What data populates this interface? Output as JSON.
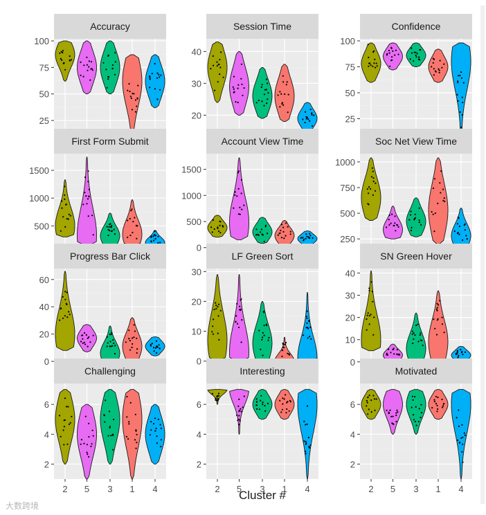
{
  "chart_data": {
    "type": "violin",
    "xlabel": "Cluster #",
    "categories": [
      "2",
      "5",
      "3",
      "1",
      "4"
    ],
    "colors": [
      "#a3a500",
      "#e76bf3",
      "#00bf7d",
      "#f8766d",
      "#00b0f6"
    ],
    "panels": [
      {
        "title": "Accuracy",
        "ylim": [
          12,
          102
        ],
        "ticks": [
          25,
          50,
          75,
          100
        ],
        "ranges": [
          [
            62,
            100
          ],
          [
            50,
            100
          ],
          [
            50,
            100
          ],
          [
            12,
            87
          ],
          [
            37,
            87
          ]
        ],
        "medians": [
          87,
          75,
          75,
          62,
          62
        ]
      },
      {
        "title": "Session Time",
        "ylim": [
          14,
          44
        ],
        "ticks": [
          20,
          30,
          40
        ],
        "ranges": [
          [
            24,
            43
          ],
          [
            20,
            40
          ],
          [
            19,
            35
          ],
          [
            18,
            36
          ],
          [
            15,
            24
          ]
        ],
        "medians": [
          35,
          29,
          26,
          26,
          19
        ]
      },
      {
        "title": "Confidence",
        "ylim": [
          10,
          102
        ],
        "ticks": [
          25,
          50,
          75,
          100
        ],
        "ranges": [
          [
            60,
            98
          ],
          [
            72,
            98
          ],
          [
            75,
            98
          ],
          [
            60,
            92
          ],
          [
            12,
            98
          ]
        ],
        "medians": [
          78,
          85,
          86,
          75,
          80
        ]
      },
      {
        "title": "First Form Submit",
        "ylim": [
          80,
          1800
        ],
        "ticks": [
          500,
          1000,
          1500
        ],
        "ranges": [
          [
            300,
            1330
          ],
          [
            150,
            1740
          ],
          [
            150,
            730
          ],
          [
            150,
            970
          ],
          [
            120,
            420
          ]
        ],
        "medians": [
          500,
          330,
          320,
          350,
          200
        ]
      },
      {
        "title": "Account View Time",
        "ylim": [
          -30,
          1800
        ],
        "ticks": [
          0,
          500,
          1000,
          1500
        ],
        "ranges": [
          [
            200,
            620
          ],
          [
            150,
            1720
          ],
          [
            80,
            580
          ],
          [
            50,
            520
          ],
          [
            40,
            320
          ]
        ],
        "medians": [
          380,
          480,
          300,
          230,
          170
        ]
      },
      {
        "title": "Soc Net View Time",
        "ylim": [
          150,
          1080
        ],
        "ticks": [
          250,
          500,
          750,
          1000
        ],
        "ranges": [
          [
            430,
            1040
          ],
          [
            250,
            570
          ],
          [
            270,
            650
          ],
          [
            200,
            1040
          ],
          [
            180,
            550
          ]
        ],
        "medians": [
          650,
          340,
          420,
          530,
          280
        ]
      },
      {
        "title": "Progress Bar Click",
        "ylim": [
          -2,
          68
        ],
        "ticks": [
          0,
          20,
          40,
          60
        ],
        "ranges": [
          [
            8,
            66
          ],
          [
            7,
            27
          ],
          [
            0,
            26
          ],
          [
            0,
            32
          ],
          [
            4,
            18
          ]
        ],
        "medians": [
          20,
          17,
          6,
          11,
          11
        ]
      },
      {
        "title": "LF Green Sort",
        "ylim": [
          -1,
          31
        ],
        "ticks": [
          0,
          10,
          20,
          30
        ],
        "ranges": [
          [
            0,
            29
          ],
          [
            0,
            29
          ],
          [
            0,
            20
          ],
          [
            0,
            8
          ],
          [
            0,
            23
          ]
        ],
        "medians": [
          7,
          3,
          6,
          0,
          1
        ]
      },
      {
        "title": "SN Green Hover",
        "ylim": [
          -1,
          42
        ],
        "ticks": [
          0,
          10,
          20,
          30,
          40
        ],
        "ranges": [
          [
            5,
            41
          ],
          [
            0,
            8
          ],
          [
            0,
            22
          ],
          [
            0,
            32
          ],
          [
            0,
            7
          ]
        ],
        "medians": [
          10,
          3,
          6,
          9,
          3
        ]
      },
      {
        "title": "Challenging",
        "ylim": [
          1,
          7.4
        ],
        "ticks": [
          2,
          4,
          6
        ],
        "ranges": [
          [
            2,
            7
          ],
          [
            1,
            6
          ],
          [
            2,
            7
          ],
          [
            1,
            7
          ],
          [
            2,
            6
          ]
        ],
        "medians": [
          5,
          4,
          5,
          5,
          4
        ]
      },
      {
        "title": "Interesting",
        "ylim": [
          1,
          7.4
        ],
        "ticks": [
          2,
          4,
          6
        ],
        "ranges": [
          [
            6,
            7
          ],
          [
            4,
            7
          ],
          [
            5,
            7
          ],
          [
            5,
            7
          ],
          [
            1,
            7
          ]
        ],
        "medians": [
          7,
          7,
          6,
          6,
          6
        ]
      },
      {
        "title": "Motivated",
        "ylim": [
          1,
          7.4
        ],
        "ticks": [
          2,
          4,
          6
        ],
        "ranges": [
          [
            5,
            7
          ],
          [
            4,
            7
          ],
          [
            4,
            7
          ],
          [
            5,
            7
          ],
          [
            1,
            7
          ]
        ],
        "medians": [
          6,
          6,
          6,
          6,
          6
        ]
      }
    ]
  },
  "watermark": "大数跨境"
}
